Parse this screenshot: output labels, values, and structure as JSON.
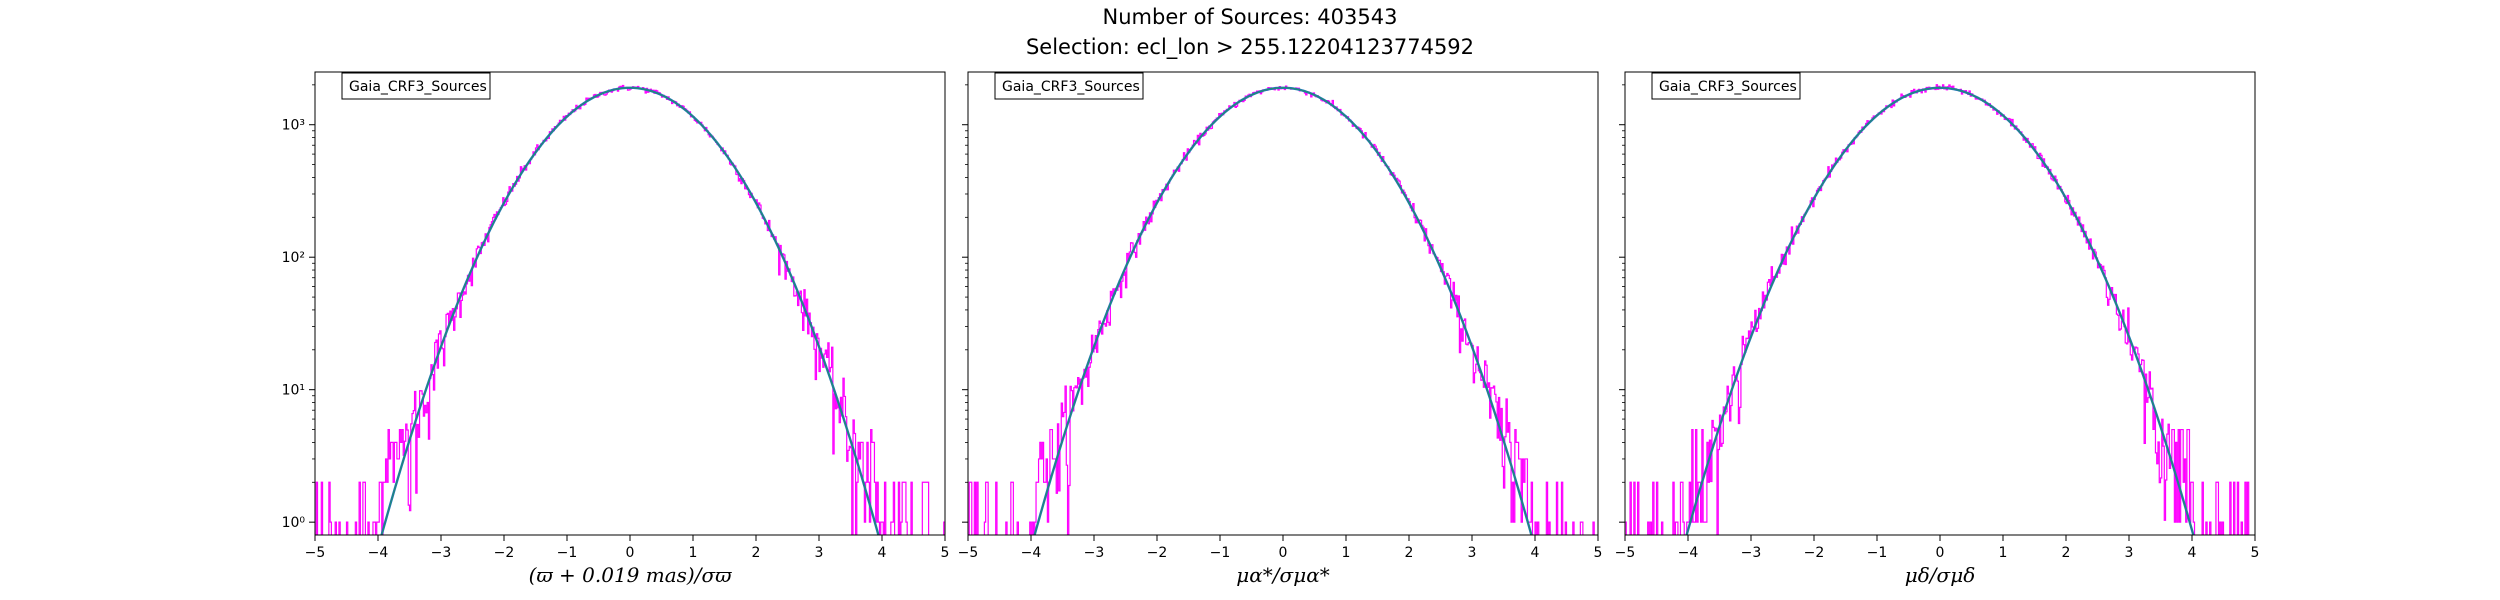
{
  "suptitle": {
    "line1": "Number of Sources: 403543",
    "line2": "Selection: ecl_lon > 255.12204123774592"
  },
  "colors": {
    "histogram": "#ff00ff",
    "gaussian": "#1f77b4"
  },
  "chart_data": [
    {
      "type": "line",
      "legend": "Gaia_CRF3_Sources",
      "legend_placement": "top-left",
      "xlabel": "(ϖ + 0.019 mas)/σϖ",
      "xlim": [
        -5,
        5
      ],
      "ylim": [
        0.8,
        2500
      ],
      "yscale": "log",
      "xticks": [
        "−5",
        "−4",
        "−3",
        "−2",
        "−1",
        "0",
        "1",
        "2",
        "3",
        "4",
        "5"
      ],
      "yticks": [
        {
          "value": 1,
          "label": "10⁰"
        },
        {
          "value": 10,
          "label": "10¹"
        },
        {
          "value": 100,
          "label": "10²"
        },
        {
          "value": 1000,
          "label": "10³"
        }
      ],
      "grid": false,
      "peak": 1900,
      "sigma": 1.0,
      "series": [
        {
          "name": "histogram",
          "x": [
            -5,
            -4.5,
            -4.1,
            -4,
            -3.5,
            -3,
            -2.5,
            -2,
            -1.5,
            -1,
            -0.5,
            0,
            0.5,
            1,
            1.5,
            2,
            2.5,
            3,
            3.5,
            4,
            4.1,
            4.5,
            5
          ],
          "y": [
            1,
            1.5,
            1,
            2,
            8,
            60,
            80,
            250,
            600,
            1150,
            1650,
            1900,
            1650,
            1150,
            600,
            250,
            80,
            25,
            8,
            2,
            1,
            2,
            1
          ]
        },
        {
          "name": "gaussian",
          "x": [
            -4.1,
            -4,
            -3.5,
            -3,
            -2.5,
            -2,
            -1.5,
            -1,
            -0.5,
            0,
            0.5,
            1,
            1.5,
            2,
            2.5,
            3,
            3.5,
            4,
            4.1
          ],
          "y": [
            0.85,
            1.3,
            5,
            21,
            84,
            257,
            615,
            1152,
            1677,
            1900,
            1677,
            1152,
            615,
            257,
            84,
            21,
            5,
            1.3,
            0.85
          ]
        }
      ]
    },
    {
      "type": "line",
      "legend": "Gaia_CRF3_Sources",
      "legend_placement": "top-left",
      "xlabel": "μα*/σμα*",
      "xlim": [
        -5,
        5
      ],
      "ylim": [
        0.8,
        2500
      ],
      "yscale": "log",
      "xticks": [
        "−5",
        "−4",
        "−3",
        "−2",
        "−1",
        "0",
        "1",
        "2",
        "3",
        "4",
        "5"
      ],
      "grid": false,
      "peak": 1900,
      "sigma": 1.0,
      "series": [
        {
          "name": "histogram",
          "x": [
            -5,
            -4.5,
            -4,
            -3.5,
            -3,
            -2.5,
            -2,
            -1.5,
            -1,
            -0.5,
            0,
            0.5,
            1,
            1.5,
            2,
            2.5,
            3,
            3.5,
            4,
            4.5,
            5
          ],
          "y": [
            1,
            1,
            2,
            10,
            30,
            90,
            260,
            620,
            1150,
            1680,
            1900,
            1680,
            1150,
            620,
            260,
            90,
            22,
            7,
            2,
            1,
            1
          ]
        },
        {
          "name": "gaussian",
          "x": [
            -4.2,
            -4,
            -3.5,
            -3,
            -2.5,
            -2,
            -1.5,
            -1,
            -0.5,
            0,
            0.5,
            1,
            1.5,
            2,
            2.5,
            3,
            3.5,
            4,
            4.2
          ],
          "y": [
            0.85,
            1.3,
            5,
            21,
            84,
            257,
            615,
            1152,
            1677,
            1900,
            1677,
            1152,
            615,
            257,
            84,
            21,
            5,
            1.3,
            0.85
          ]
        }
      ]
    },
    {
      "type": "line",
      "legend": "Gaia_CRF3_Sources",
      "legend_placement": "top-left",
      "xlabel": "μδ/σμδ",
      "xlim": [
        -5,
        5
      ],
      "ylim": [
        0.8,
        2500
      ],
      "yscale": "log",
      "xticks": [
        "−5",
        "−4",
        "−3",
        "−2",
        "−1",
        "0",
        "1",
        "2",
        "3",
        "4",
        "5"
      ],
      "grid": false,
      "peak": 1900,
      "sigma": 1.02,
      "series": [
        {
          "name": "histogram",
          "x": [
            -5,
            -4.5,
            -4,
            -3.5,
            -3,
            -2.5,
            -2,
            -1.5,
            -1,
            -0.5,
            0,
            0.5,
            1,
            1.5,
            2,
            2.5,
            3,
            3.5,
            4,
            4.5,
            5
          ],
          "y": [
            1,
            2,
            3,
            12,
            30,
            90,
            270,
            630,
            1160,
            1680,
            1900,
            1680,
            1160,
            630,
            270,
            90,
            25,
            12,
            2,
            1,
            1
          ]
        },
        {
          "name": "gaussian",
          "x": [
            -4.3,
            -4,
            -3.5,
            -3,
            -2.5,
            -2,
            -1.5,
            -1,
            -0.5,
            0,
            0.5,
            1,
            1.5,
            2,
            2.5,
            3,
            3.5,
            4,
            4.3
          ],
          "y": [
            0.85,
            1.6,
            6,
            25,
            95,
            275,
            640,
            1170,
            1690,
            1900,
            1690,
            1170,
            640,
            275,
            95,
            25,
            6,
            1.6,
            0.85
          ]
        }
      ]
    }
  ]
}
